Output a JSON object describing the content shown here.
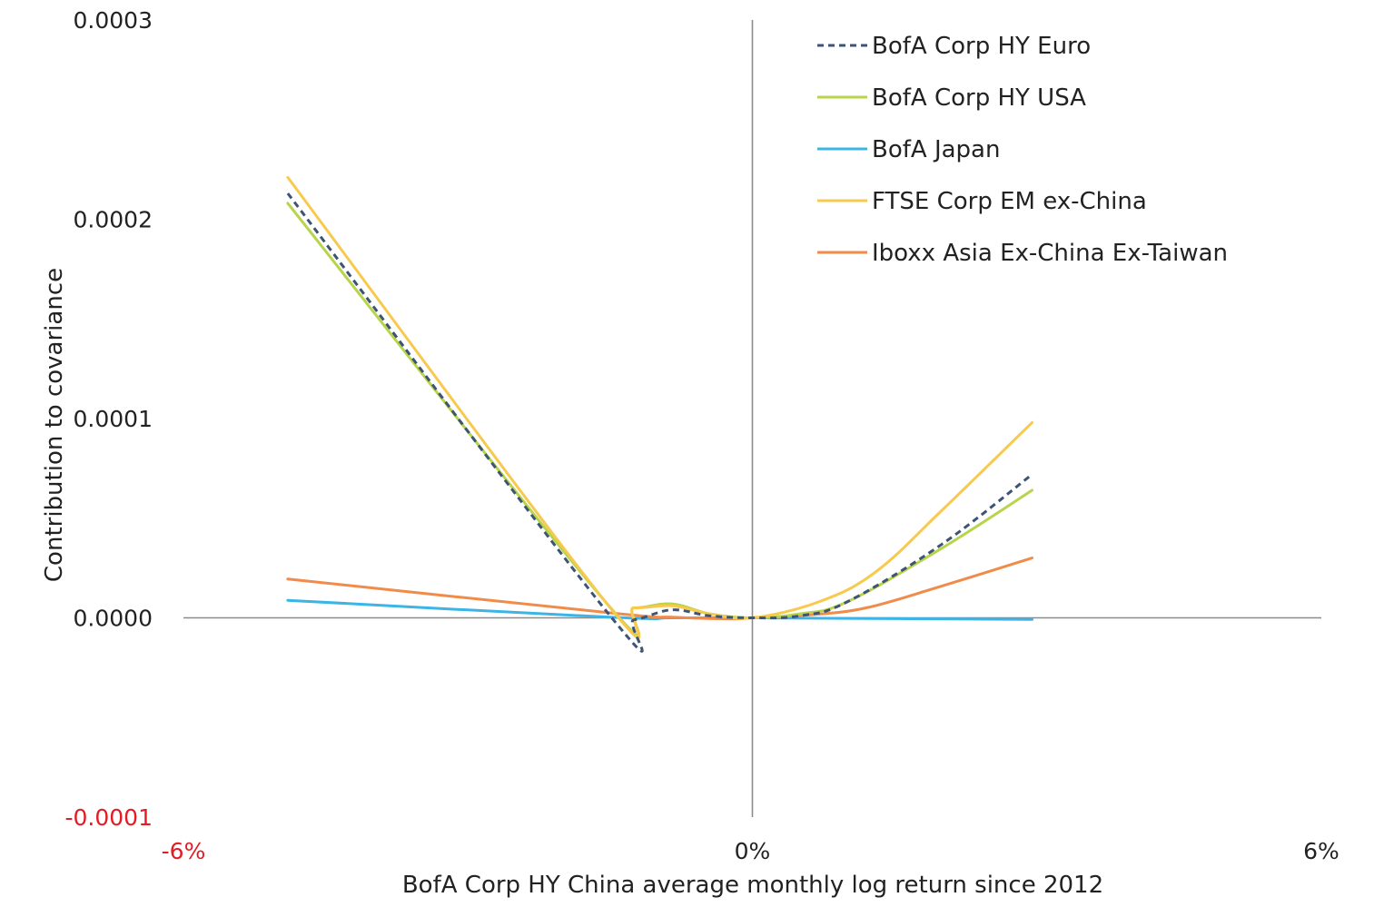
{
  "chart_data": {
    "type": "line",
    "title": "",
    "xlabel": "BofA Corp HY China average monthly log return since 2012",
    "ylabel": "Contribution to covariance",
    "xlim": [
      -6,
      6
    ],
    "ylim": [
      -0.0001,
      0.0003
    ],
    "x_ticks": [
      {
        "value": -6,
        "label": "-6%",
        "color": "#e31b23"
      },
      {
        "value": 0,
        "label": "0%",
        "color": "#222222"
      },
      {
        "value": 6,
        "label": "6%",
        "color": "#222222"
      }
    ],
    "y_ticks": [
      {
        "value": 0.0003,
        "label": "0.0003",
        "color": "#222222"
      },
      {
        "value": 0.0002,
        "label": "0.0002",
        "color": "#222222"
      },
      {
        "value": 0.0001,
        "label": "0.0001",
        "color": "#222222"
      },
      {
        "value": 0.0,
        "label": "0.0000",
        "color": "#222222"
      },
      {
        "value": -0.0001,
        "label": "-0.0001",
        "color": "#e31b23"
      }
    ],
    "grid": false,
    "legend_position": "top-right",
    "series": [
      {
        "name": "BofA Corp HY Euro",
        "color": "#3d5475",
        "dash": "dashed",
        "x": [
          -4.9,
          -1.5,
          -1.25,
          -0.85,
          -0.45,
          0.0,
          0.5,
          1.0,
          2.0,
          2.95
        ],
        "y": [
          0.000213,
          1e-06,
          -1e-06,
          4e-06,
          1e-06,
          0.0,
          1e-06,
          8e-06,
          3.7e-05,
          7.2e-05
        ]
      },
      {
        "name": "BofA Corp HY USA",
        "color": "#b8d44a",
        "dash": "solid",
        "x": [
          -4.9,
          -1.55,
          -1.25,
          -0.85,
          -0.45,
          0.0,
          0.5,
          1.0,
          2.0,
          2.95
        ],
        "y": [
          0.000208,
          8e-06,
          5e-06,
          7e-06,
          2e-06,
          0.0,
          2e-06,
          8e-06,
          3.5e-05,
          6.4e-05
        ]
      },
      {
        "name": "BofA Japan",
        "color": "#3cb4e6",
        "dash": "solid",
        "x": [
          -4.9,
          -1.5,
          -0.85,
          0.0,
          0.6,
          1.5,
          2.95
        ],
        "y": [
          8.8e-06,
          3e-07,
          0.0,
          0.0,
          -2e-07,
          -4e-07,
          -8e-07
        ]
      },
      {
        "name": "FTSE Corp EM ex-China",
        "color": "#f7ca4f",
        "dash": "solid",
        "x": [
          -4.9,
          -1.55,
          -1.25,
          -0.85,
          -0.45,
          0.0,
          0.7,
          1.3,
          2.0,
          2.95
        ],
        "y": [
          0.000221,
          8e-06,
          5e-06,
          6e-06,
          2e-06,
          0.0,
          8e-06,
          2.3e-05,
          5.4e-05,
          9.8e-05
        ]
      },
      {
        "name": "Iboxx Asia Ex-China Ex-Taiwan",
        "color": "#f08b4a",
        "dash": "solid",
        "x": [
          -4.9,
          -1.5,
          -0.85,
          -0.2,
          0.0,
          0.6,
          1.2,
          2.0,
          2.95
        ],
        "y": [
          1.95e-05,
          2.5e-06,
          3e-07,
          -5e-07,
          0.0,
          1.5e-06,
          5e-06,
          1.6e-05,
          3e-05
        ]
      }
    ]
  }
}
